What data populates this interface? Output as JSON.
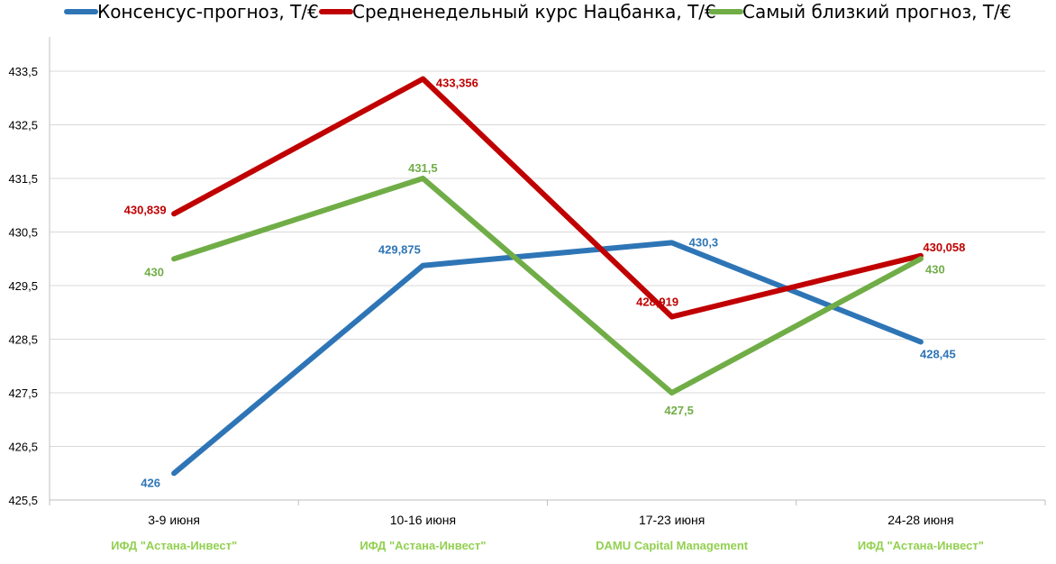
{
  "chart_data": {
    "type": "line",
    "categories": [
      "3-9 июня",
      "10-16 июня",
      "17-23 июня",
      "24-28 июня"
    ],
    "sublabels": [
      "ИФД \"Астана-Инвест\"",
      "ИФД \"Астана-Инвест\"",
      "DAMU Capital Management",
      "ИФД \"Астана-Инвест\""
    ],
    "sublabel_color": "#92d050",
    "ylim": [
      425.5,
      433.5
    ],
    "yticks": [
      "425,5",
      "426,5",
      "427,5",
      "428,5",
      "429,5",
      "430,5",
      "431,5",
      "432,5",
      "433,5"
    ],
    "legend_position": "top",
    "grid": true,
    "series": [
      {
        "name": "Консенсус-прогноз, Т/€",
        "color": "#2e75b6",
        "values": [
          426,
          429.875,
          430.3,
          428.45
        ],
        "labels": [
          "426",
          "429,875",
          "430,3",
          "428,45"
        ]
      },
      {
        "name": "Средненедельный курс Нацбанка, Т/€",
        "color": "#c00000",
        "values": [
          430.839,
          433.356,
          428.919,
          430.058
        ],
        "labels": [
          "430,839",
          "433,356",
          "428,919",
          "430,058"
        ]
      },
      {
        "name": "Самый близкий прогноз, Т/€",
        "color": "#70ad47",
        "values": [
          430,
          431.5,
          427.5,
          430
        ],
        "labels": [
          "430",
          "431,5",
          "427,5",
          "430"
        ]
      }
    ]
  }
}
